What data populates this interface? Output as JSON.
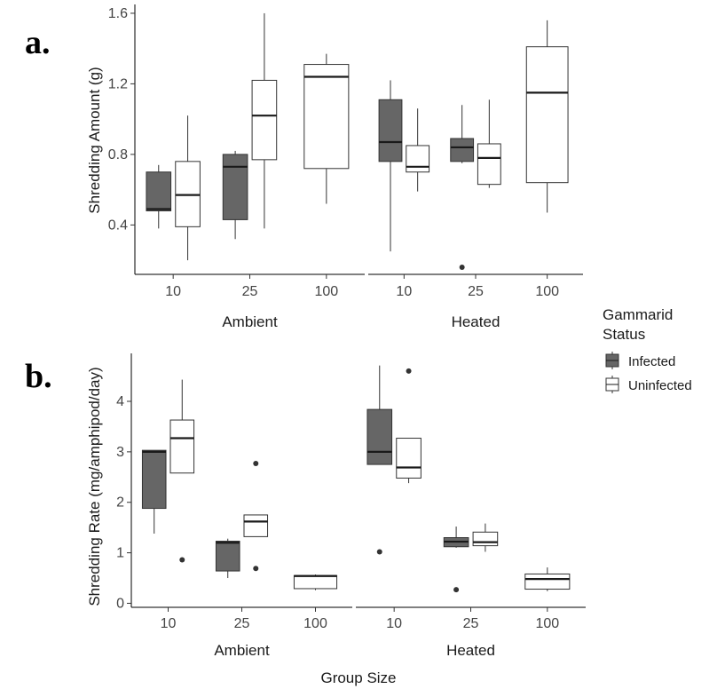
{
  "panel_labels": {
    "a": "a.",
    "b": "b."
  },
  "legend": {
    "title_line1": "Gammarid",
    "title_line2": "Status",
    "items": [
      {
        "label": "Infected",
        "color": "#666666"
      },
      {
        "label": "Uninfected",
        "color": "#ffffff"
      }
    ]
  },
  "x_axis_title": "Group Size",
  "chart_data": [
    {
      "type": "boxplot",
      "panel": "a.",
      "ylabel": "Shredding Amount (g)",
      "ylim": [
        0.12,
        1.65
      ],
      "yticks": [
        0.4,
        0.8,
        1.2,
        1.6
      ],
      "ytick_labels": [
        "0.4",
        "0.8",
        "1.2",
        "1.6"
      ],
      "facets": [
        "Ambient",
        "Heated"
      ],
      "categories": [
        "10",
        "25",
        "100"
      ],
      "series": [
        {
          "name": "Infected",
          "facet": "Ambient",
          "category": "10",
          "min": 0.38,
          "q1": 0.48,
          "median": 0.49,
          "q3": 0.7,
          "max": 0.74,
          "outliers": []
        },
        {
          "name": "Uninfected",
          "facet": "Ambient",
          "category": "10",
          "min": 0.2,
          "q1": 0.39,
          "median": 0.57,
          "q3": 0.76,
          "max": 1.02,
          "outliers": []
        },
        {
          "name": "Infected",
          "facet": "Ambient",
          "category": "25",
          "min": 0.32,
          "q1": 0.43,
          "median": 0.73,
          "q3": 0.8,
          "max": 0.82,
          "outliers": []
        },
        {
          "name": "Uninfected",
          "facet": "Ambient",
          "category": "25",
          "min": 0.38,
          "q1": 0.77,
          "median": 1.02,
          "q3": 1.22,
          "max": 1.6,
          "outliers": []
        },
        {
          "name": "Uninfected",
          "facet": "Ambient",
          "category": "100",
          "min": 0.52,
          "q1": 0.72,
          "median": 1.24,
          "q3": 1.31,
          "max": 1.37,
          "outliers": []
        },
        {
          "name": "Infected",
          "facet": "Heated",
          "category": "10",
          "min": 0.25,
          "q1": 0.76,
          "median": 0.87,
          "q3": 1.11,
          "max": 1.22,
          "outliers": []
        },
        {
          "name": "Uninfected",
          "facet": "Heated",
          "category": "10",
          "min": 0.59,
          "q1": 0.7,
          "median": 0.73,
          "q3": 0.85,
          "max": 1.06,
          "outliers": []
        },
        {
          "name": "Infected",
          "facet": "Heated",
          "category": "25",
          "min": 0.75,
          "q1": 0.76,
          "median": 0.84,
          "q3": 0.89,
          "max": 1.08,
          "outliers": [
            0.16
          ]
        },
        {
          "name": "Uninfected",
          "facet": "Heated",
          "category": "25",
          "min": 0.61,
          "q1": 0.63,
          "median": 0.78,
          "q3": 0.86,
          "max": 1.11,
          "outliers": []
        },
        {
          "name": "Uninfected",
          "facet": "Heated",
          "category": "100",
          "min": 0.47,
          "q1": 0.64,
          "median": 1.15,
          "q3": 1.41,
          "max": 1.56,
          "outliers": []
        }
      ]
    },
    {
      "type": "boxplot",
      "panel": "b.",
      "ylabel": "Shredding Rate (mg/amphipod/day)",
      "ylim": [
        -0.08,
        4.95
      ],
      "yticks": [
        0,
        1,
        2,
        3,
        4
      ],
      "ytick_labels": [
        "0",
        "1",
        "2",
        "3",
        "4"
      ],
      "facets": [
        "Ambient",
        "Heated"
      ],
      "categories": [
        "10",
        "25",
        "100"
      ],
      "series": [
        {
          "name": "Infected",
          "facet": "Ambient",
          "category": "10",
          "min": 1.38,
          "q1": 1.88,
          "median": 3.0,
          "q3": 3.03,
          "max": 3.03,
          "outliers": []
        },
        {
          "name": "Uninfected",
          "facet": "Ambient",
          "category": "10",
          "min": 2.58,
          "q1": 2.58,
          "median": 3.27,
          "q3": 3.63,
          "max": 4.43,
          "outliers": [
            0.86
          ]
        },
        {
          "name": "Infected",
          "facet": "Ambient",
          "category": "25",
          "min": 0.5,
          "q1": 0.64,
          "median": 1.2,
          "q3": 1.23,
          "max": 1.28,
          "outliers": []
        },
        {
          "name": "Uninfected",
          "facet": "Ambient",
          "category": "25",
          "min": 1.32,
          "q1": 1.32,
          "median": 1.62,
          "q3": 1.75,
          "max": 1.75,
          "outliers": [
            2.77,
            0.69
          ]
        },
        {
          "name": "Uninfected",
          "facet": "Ambient",
          "category": "100",
          "min": 0.26,
          "q1": 0.29,
          "median": 0.54,
          "q3": 0.55,
          "max": 0.57,
          "outliers": []
        },
        {
          "name": "Infected",
          "facet": "Heated",
          "category": "10",
          "min": 2.75,
          "q1": 2.75,
          "median": 3.0,
          "q3": 3.84,
          "max": 4.71,
          "outliers": [
            1.02
          ]
        },
        {
          "name": "Uninfected",
          "facet": "Heated",
          "category": "10",
          "min": 2.38,
          "q1": 2.48,
          "median": 2.69,
          "q3": 3.27,
          "max": 3.27,
          "outliers": [
            4.6
          ]
        },
        {
          "name": "Infected",
          "facet": "Heated",
          "category": "25",
          "min": 1.1,
          "q1": 1.12,
          "median": 1.22,
          "q3": 1.3,
          "max": 1.52,
          "outliers": [
            0.27
          ]
        },
        {
          "name": "Uninfected",
          "facet": "Heated",
          "category": "25",
          "min": 1.02,
          "q1": 1.14,
          "median": 1.21,
          "q3": 1.41,
          "max": 1.58,
          "outliers": []
        },
        {
          "name": "Uninfected",
          "facet": "Heated",
          "category": "100",
          "min": 0.24,
          "q1": 0.28,
          "median": 0.48,
          "q3": 0.58,
          "max": 0.71,
          "outliers": []
        }
      ]
    }
  ]
}
